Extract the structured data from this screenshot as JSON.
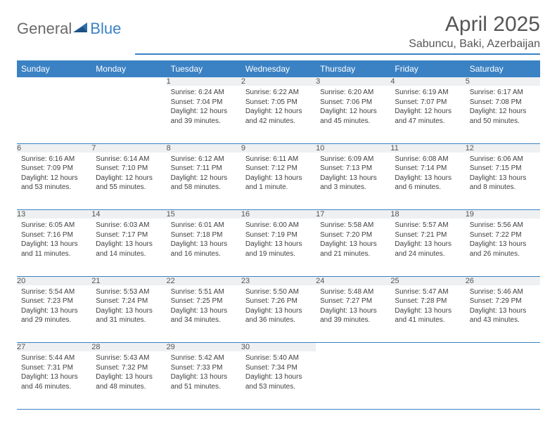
{
  "logo": {
    "general": "General",
    "blue": "Blue"
  },
  "title": "April 2025",
  "subtitle": "Sabuncu, Baki, Azerbaijan",
  "colors": {
    "header_bg": "#3b82c4",
    "header_text": "#ffffff",
    "daynum_bg": "#eef0f2",
    "border": "#3b82c4",
    "body_text": "#404040",
    "title_text": "#565656"
  },
  "weekdays": [
    "Sunday",
    "Monday",
    "Tuesday",
    "Wednesday",
    "Thursday",
    "Friday",
    "Saturday"
  ],
  "weeks": [
    [
      null,
      null,
      {
        "n": "1",
        "sr": "6:24 AM",
        "ss": "7:04 PM",
        "dl": "12 hours and 39 minutes."
      },
      {
        "n": "2",
        "sr": "6:22 AM",
        "ss": "7:05 PM",
        "dl": "12 hours and 42 minutes."
      },
      {
        "n": "3",
        "sr": "6:20 AM",
        "ss": "7:06 PM",
        "dl": "12 hours and 45 minutes."
      },
      {
        "n": "4",
        "sr": "6:19 AM",
        "ss": "7:07 PM",
        "dl": "12 hours and 47 minutes."
      },
      {
        "n": "5",
        "sr": "6:17 AM",
        "ss": "7:08 PM",
        "dl": "12 hours and 50 minutes."
      }
    ],
    [
      {
        "n": "6",
        "sr": "6:16 AM",
        "ss": "7:09 PM",
        "dl": "12 hours and 53 minutes."
      },
      {
        "n": "7",
        "sr": "6:14 AM",
        "ss": "7:10 PM",
        "dl": "12 hours and 55 minutes."
      },
      {
        "n": "8",
        "sr": "6:12 AM",
        "ss": "7:11 PM",
        "dl": "12 hours and 58 minutes."
      },
      {
        "n": "9",
        "sr": "6:11 AM",
        "ss": "7:12 PM",
        "dl": "13 hours and 1 minute."
      },
      {
        "n": "10",
        "sr": "6:09 AM",
        "ss": "7:13 PM",
        "dl": "13 hours and 3 minutes."
      },
      {
        "n": "11",
        "sr": "6:08 AM",
        "ss": "7:14 PM",
        "dl": "13 hours and 6 minutes."
      },
      {
        "n": "12",
        "sr": "6:06 AM",
        "ss": "7:15 PM",
        "dl": "13 hours and 8 minutes."
      }
    ],
    [
      {
        "n": "13",
        "sr": "6:05 AM",
        "ss": "7:16 PM",
        "dl": "13 hours and 11 minutes."
      },
      {
        "n": "14",
        "sr": "6:03 AM",
        "ss": "7:17 PM",
        "dl": "13 hours and 14 minutes."
      },
      {
        "n": "15",
        "sr": "6:01 AM",
        "ss": "7:18 PM",
        "dl": "13 hours and 16 minutes."
      },
      {
        "n": "16",
        "sr": "6:00 AM",
        "ss": "7:19 PM",
        "dl": "13 hours and 19 minutes."
      },
      {
        "n": "17",
        "sr": "5:58 AM",
        "ss": "7:20 PM",
        "dl": "13 hours and 21 minutes."
      },
      {
        "n": "18",
        "sr": "5:57 AM",
        "ss": "7:21 PM",
        "dl": "13 hours and 24 minutes."
      },
      {
        "n": "19",
        "sr": "5:56 AM",
        "ss": "7:22 PM",
        "dl": "13 hours and 26 minutes."
      }
    ],
    [
      {
        "n": "20",
        "sr": "5:54 AM",
        "ss": "7:23 PM",
        "dl": "13 hours and 29 minutes."
      },
      {
        "n": "21",
        "sr": "5:53 AM",
        "ss": "7:24 PM",
        "dl": "13 hours and 31 minutes."
      },
      {
        "n": "22",
        "sr": "5:51 AM",
        "ss": "7:25 PM",
        "dl": "13 hours and 34 minutes."
      },
      {
        "n": "23",
        "sr": "5:50 AM",
        "ss": "7:26 PM",
        "dl": "13 hours and 36 minutes."
      },
      {
        "n": "24",
        "sr": "5:48 AM",
        "ss": "7:27 PM",
        "dl": "13 hours and 39 minutes."
      },
      {
        "n": "25",
        "sr": "5:47 AM",
        "ss": "7:28 PM",
        "dl": "13 hours and 41 minutes."
      },
      {
        "n": "26",
        "sr": "5:46 AM",
        "ss": "7:29 PM",
        "dl": "13 hours and 43 minutes."
      }
    ],
    [
      {
        "n": "27",
        "sr": "5:44 AM",
        "ss": "7:31 PM",
        "dl": "13 hours and 46 minutes."
      },
      {
        "n": "28",
        "sr": "5:43 AM",
        "ss": "7:32 PM",
        "dl": "13 hours and 48 minutes."
      },
      {
        "n": "29",
        "sr": "5:42 AM",
        "ss": "7:33 PM",
        "dl": "13 hours and 51 minutes."
      },
      {
        "n": "30",
        "sr": "5:40 AM",
        "ss": "7:34 PM",
        "dl": "13 hours and 53 minutes."
      },
      null,
      null,
      null
    ]
  ],
  "labels": {
    "sunrise": "Sunrise:",
    "sunset": "Sunset:",
    "daylight": "Daylight:"
  }
}
